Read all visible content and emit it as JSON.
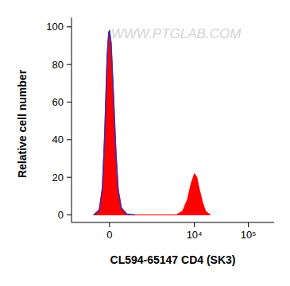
{
  "chart_data": {
    "type": "area",
    "x_label": "CL594-65147 CD4 (SK3)",
    "y_label": "Relative cell number",
    "annotation": "WWW.PTGLAB.COM",
    "x": [
      -390,
      -243,
      -166,
      -109,
      -55,
      -18,
      0,
      36,
      91,
      147,
      204,
      284,
      437,
      701,
      4590,
      6020,
      7380,
      8750,
      10030,
      11100,
      12280,
      14070,
      16100,
      19740
    ],
    "series": [
      {
        "type": "area",
        "color": "#ff0000",
        "values": [
          0,
          3,
          15,
          45,
          85,
          97,
          98,
          92,
          65,
          35,
          14,
          4,
          0.5,
          0,
          0,
          2,
          8,
          17,
          22,
          20,
          14,
          7,
          2,
          0
        ]
      },
      {
        "type": "line",
        "color": "#3b2fb0",
        "values": [
          0,
          2,
          13,
          42,
          83,
          97,
          98,
          91,
          63,
          33,
          12,
          3,
          0.3,
          0,
          null,
          null,
          null,
          null,
          null,
          null,
          null,
          null,
          null,
          null
        ]
      }
    ],
    "xlim": [
      -1300,
      300000
    ],
    "ylim": [
      -4,
      105
    ],
    "xticks": [
      {
        "value": 0,
        "label": "0"
      },
      {
        "value": 10000,
        "label": "10⁴"
      },
      {
        "value": 100000,
        "label": "10⁵"
      }
    ],
    "yticks": [
      0,
      20,
      40,
      60,
      80,
      100
    ],
    "grid": false
  }
}
